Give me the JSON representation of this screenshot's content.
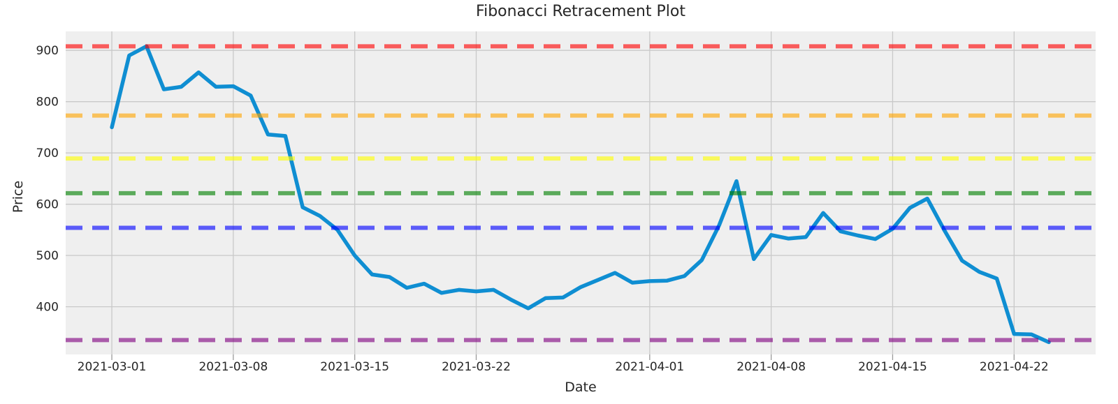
{
  "title": "Fibonacci Retracement Plot",
  "chart_data": {
    "type": "line",
    "title": "Fibonacci Retracement Plot",
    "xlabel": "Date",
    "ylabel": "Price",
    "grid": true,
    "legend": "none",
    "plot_background": "#efefef",
    "grid_color": "#c9c9c9",
    "x_ticks": [
      "2021-03-01",
      "2021-03-08",
      "2021-03-15",
      "2021-03-22",
      "2021-04-01",
      "2021-04-08",
      "2021-04-15",
      "2021-04-22"
    ],
    "y_ticks": [
      400,
      500,
      600,
      700,
      800,
      900
    ],
    "xlim_days_from_2021_03_01": [
      -2.66,
      56.7
    ],
    "ylim": [
      307,
      937
    ],
    "x": [
      "2021-03-01",
      "2021-03-02",
      "2021-03-03",
      "2021-03-04",
      "2021-03-05",
      "2021-03-06",
      "2021-03-07",
      "2021-03-08",
      "2021-03-09",
      "2021-03-10",
      "2021-03-11",
      "2021-03-12",
      "2021-03-13",
      "2021-03-14",
      "2021-03-15",
      "2021-03-16",
      "2021-03-17",
      "2021-03-18",
      "2021-03-19",
      "2021-03-20",
      "2021-03-21",
      "2021-03-22",
      "2021-03-23",
      "2021-03-24",
      "2021-03-25",
      "2021-03-26",
      "2021-03-27",
      "2021-03-28",
      "2021-03-29",
      "2021-03-30",
      "2021-03-31",
      "2021-04-01",
      "2021-04-02",
      "2021-04-03",
      "2021-04-04",
      "2021-04-05",
      "2021-04-06",
      "2021-04-07",
      "2021-04-08",
      "2021-04-09",
      "2021-04-10",
      "2021-04-11",
      "2021-04-12",
      "2021-04-13",
      "2021-04-14",
      "2021-04-15",
      "2021-04-16",
      "2021-04-17",
      "2021-04-18",
      "2021-04-19",
      "2021-04-20",
      "2021-04-21",
      "2021-04-22",
      "2021-04-23",
      "2021-04-24"
    ],
    "series": [
      {
        "name": "price",
        "color": "#0f8ed2",
        "values": [
          750,
          890,
          908,
          824,
          829,
          857,
          829,
          830,
          812,
          736,
          733,
          594,
          577,
          550,
          500,
          463,
          458,
          437,
          445,
          427,
          433,
          430,
          433,
          414,
          397,
          417,
          418,
          438,
          452,
          466,
          447,
          450,
          451,
          460,
          491,
          559,
          645,
          493,
          540,
          533,
          536,
          583,
          547,
          539,
          532,
          552,
          593,
          611,
          548,
          490,
          468,
          455,
          347,
          346,
          331
        ]
      }
    ],
    "fib_levels": [
      {
        "value": 908.0,
        "color": "#ff0000",
        "opacity": 0.62
      },
      {
        "value": 772.8,
        "color": "#ffa500",
        "opacity": 0.62
      },
      {
        "value": 689.1,
        "color": "#ffff00",
        "opacity": 0.62
      },
      {
        "value": 621.5,
        "color": "#008000",
        "opacity": 0.62
      },
      {
        "value": 553.9,
        "color": "#0000ff",
        "opacity": 0.62
      },
      {
        "value": 335.0,
        "color": "#800080",
        "opacity": 0.62
      }
    ]
  }
}
